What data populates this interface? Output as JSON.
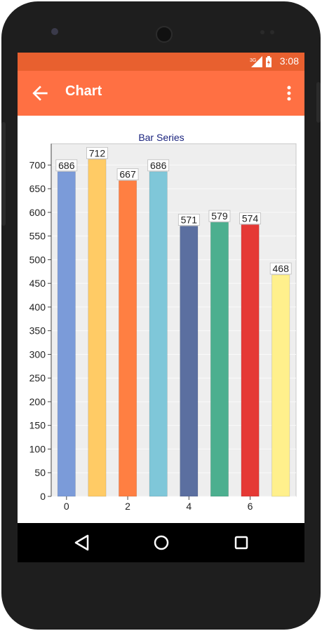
{
  "status_bar": {
    "time": "3:08",
    "network_label": "3G"
  },
  "app_bar": {
    "title": "Chart",
    "back_icon": "arrow-left-icon",
    "menu_icon": "more-vert-icon"
  },
  "nav_bar": {
    "back_icon": "triangle-back-icon",
    "home_icon": "circle-home-icon",
    "recents_icon": "square-recents-icon"
  },
  "colors": {
    "status_bar": "#e8602f",
    "app_bar": "#ff7043",
    "title_color": "#1a237e"
  },
  "chart_data": {
    "type": "bar",
    "title": "Bar Series",
    "x": [
      0,
      1,
      2,
      3,
      4,
      5,
      6,
      7
    ],
    "x_tick_labels": [
      "0",
      "2",
      "4",
      "6"
    ],
    "values": [
      686,
      712,
      667,
      686,
      571,
      579,
      574,
      468
    ],
    "data_labels": [
      "686",
      "712",
      "667",
      "686",
      "571",
      "579",
      "574",
      "468"
    ],
    "bar_colors": [
      "#7b9bd9",
      "#ffcb65",
      "#ff7f42",
      "#7fc7d9",
      "#5b6fa0",
      "#4caf8f",
      "#e53935",
      "#fff08c"
    ],
    "ylim": [
      0,
      745
    ],
    "y_ticks": [
      0,
      50,
      100,
      150,
      200,
      250,
      300,
      350,
      400,
      450,
      500,
      550,
      600,
      650,
      700
    ],
    "grid": true
  }
}
